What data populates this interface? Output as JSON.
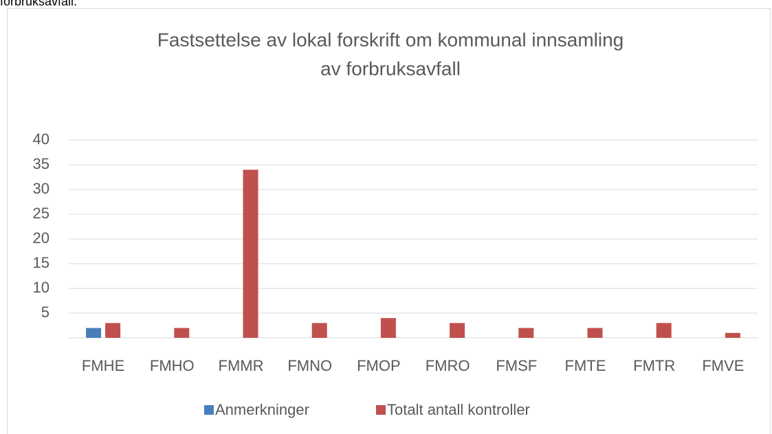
{
  "caption": "forbruksavfall.",
  "chart_data": {
    "type": "bar",
    "title": [
      "Fastsettelse av lokal forskrift om kommunal innsamling",
      "av forbruksavfall"
    ],
    "categories": [
      "FMHE",
      "FMHO",
      "FMMR",
      "FMNO",
      "FMOP",
      "FMRO",
      "FMSF",
      "FMTE",
      "FMTR",
      "FMVE"
    ],
    "series": [
      {
        "name": "Anmerkninger",
        "color": "#4a7ebb",
        "values": [
          2,
          0,
          0,
          0,
          0,
          0,
          0,
          0,
          0,
          0
        ]
      },
      {
        "name": "Totalt antall kontroller",
        "color": "#c0504d",
        "values": [
          3,
          2,
          34,
          3,
          4,
          3,
          2,
          2,
          3,
          1
        ]
      }
    ],
    "ylim": [
      0,
      40
    ],
    "yticks": [
      5,
      10,
      15,
      20,
      25,
      30,
      35,
      40
    ],
    "grid": true,
    "legend": "bottom"
  }
}
